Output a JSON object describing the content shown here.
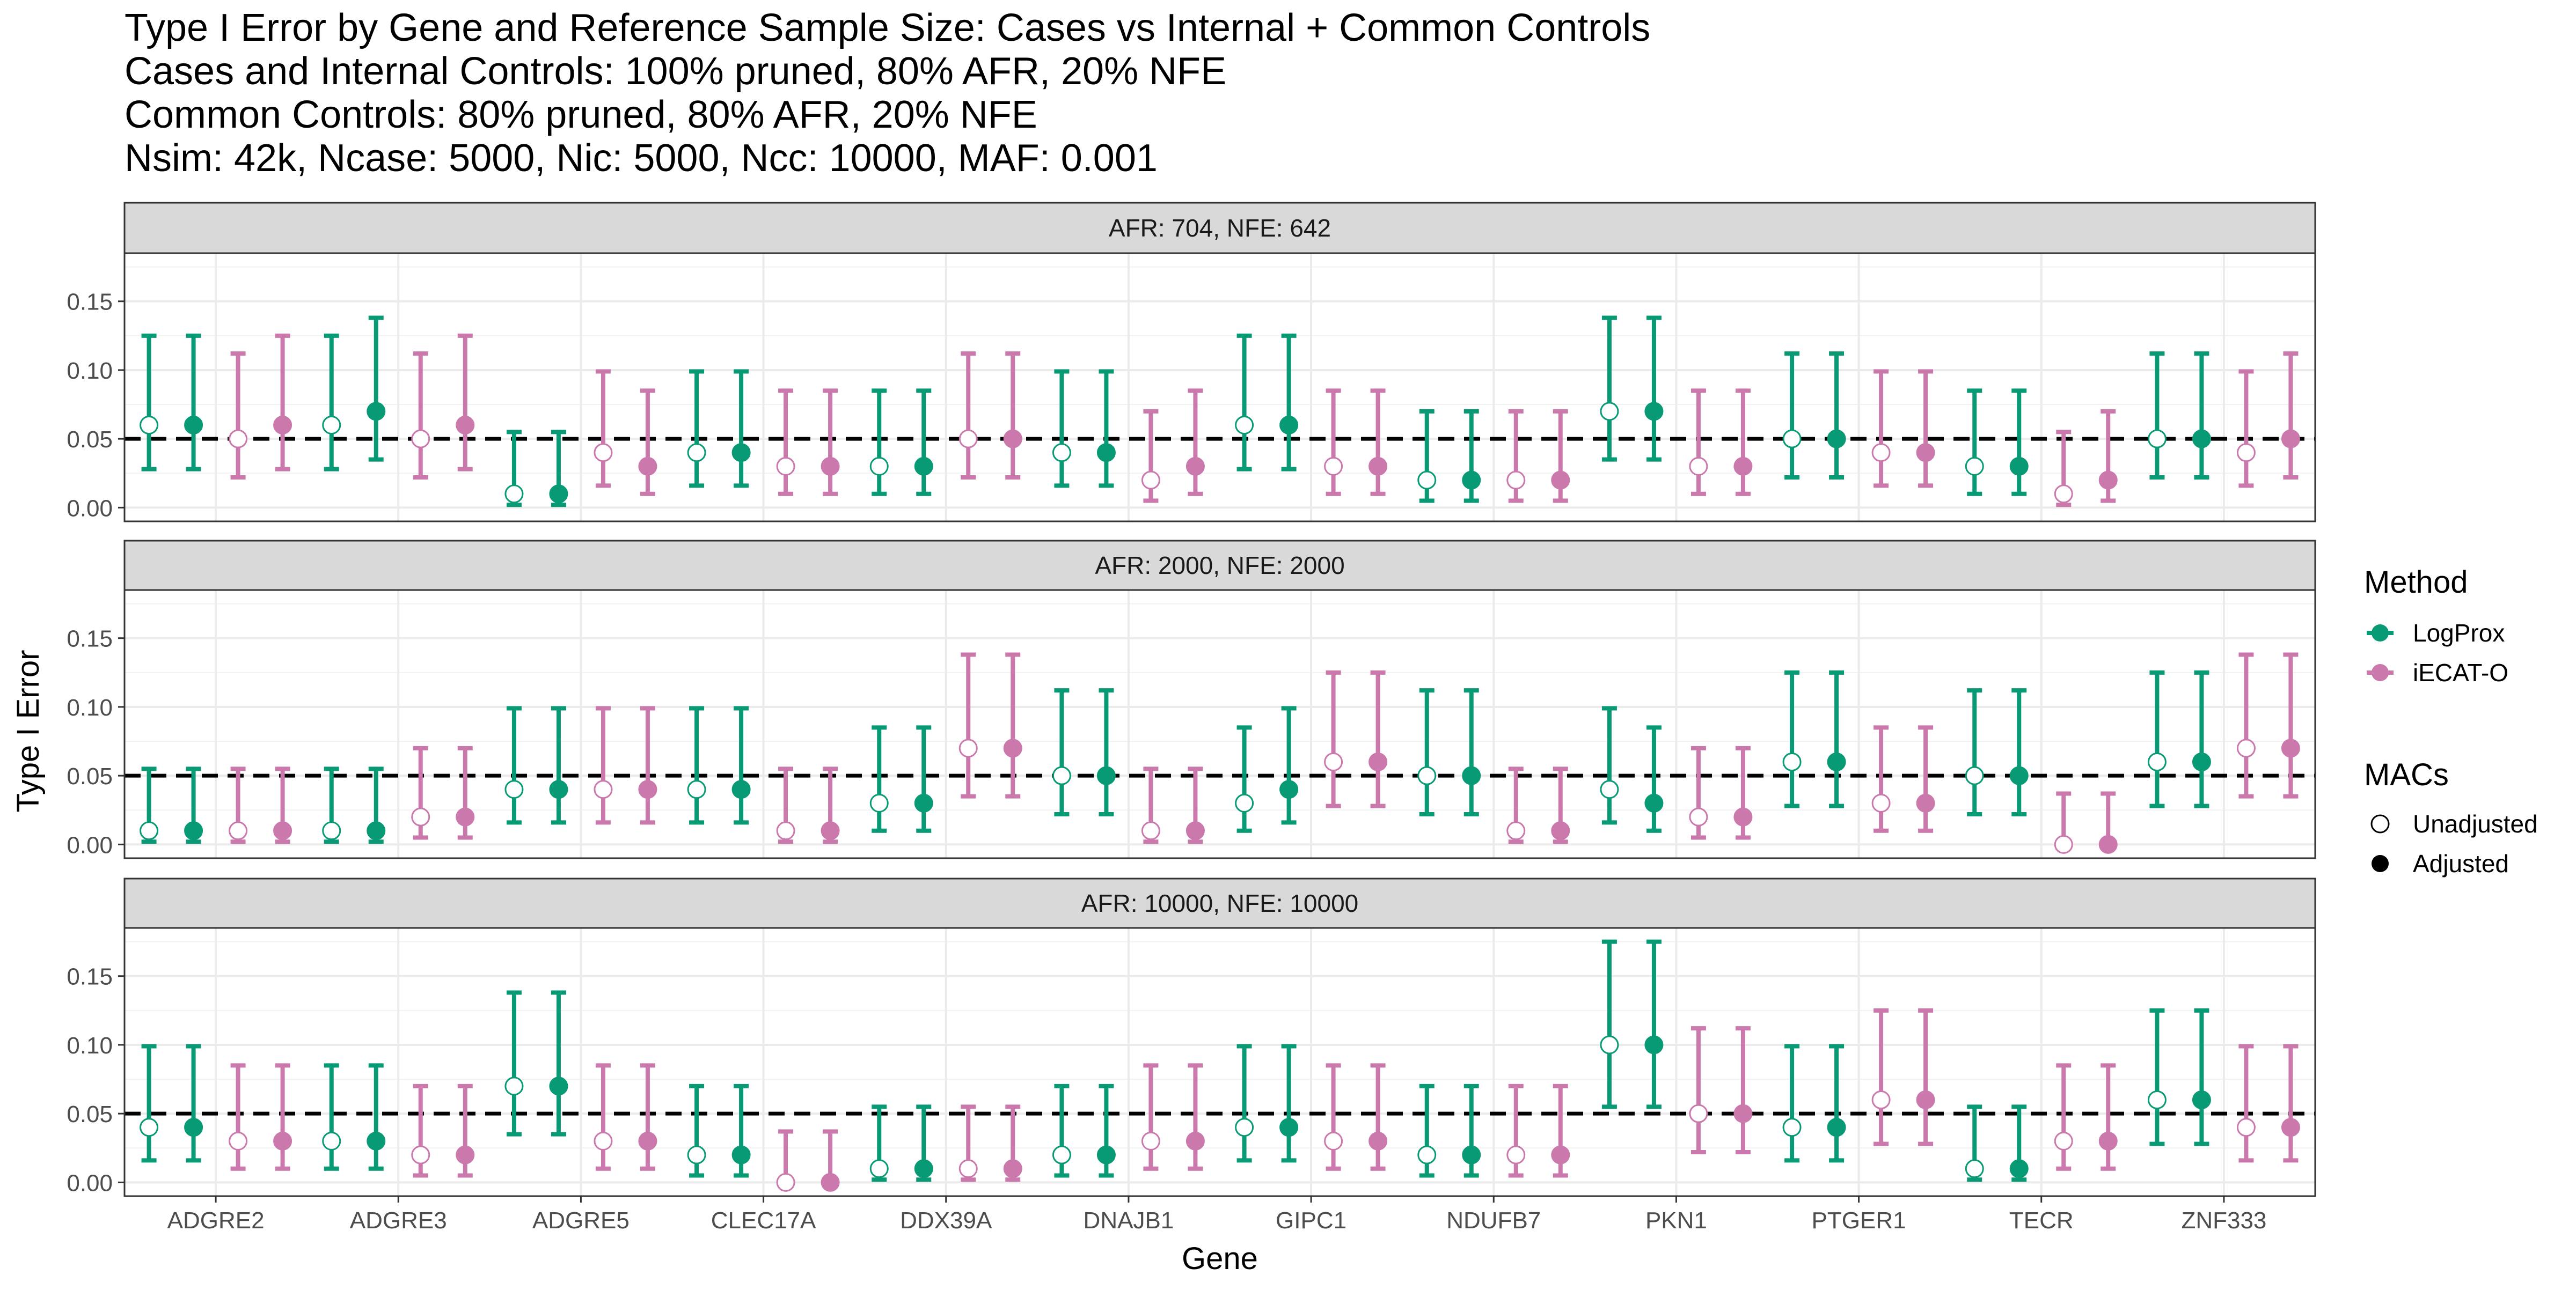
{
  "title_lines": [
    "Type I Error by Gene and Reference Sample Size: Cases vs Internal + Common Controls",
    "Cases and Internal Controls: 100% pruned, 80% AFR, 20% NFE",
    "Common Controls: 80% pruned, 80% AFR, 20% NFE",
    "Nsim: 42k, Ncase: 5000, Nic: 5000, Ncc: 10000, MAF: 0.001"
  ],
  "chart_data": {
    "type": "scatter",
    "xlabel": "Gene",
    "ylabel": "Type I Error",
    "ylim": [
      -0.01,
      0.185
    ],
    "y_ticks": [
      0.0,
      0.05,
      0.1,
      0.15
    ],
    "y_tick_labels": [
      "0.00",
      "0.05",
      "0.10",
      "0.15"
    ],
    "reference_line": 0.05,
    "grid": true,
    "categories": [
      "ADGRE2",
      "ADGRE3",
      "ADGRE5",
      "CLEC17A",
      "DDX39A",
      "DNAJB1",
      "GIPC1",
      "NDUFB7",
      "PKN1",
      "PTGER1",
      "TECR",
      "ZNF333"
    ],
    "legend": {
      "position": "right",
      "method_title": "Method",
      "methods": [
        {
          "name": "LogProx",
          "color": "#079A74"
        },
        {
          "name": "iECAT-O",
          "color": "#CB78AC"
        }
      ],
      "macs_title": "MACs",
      "macs": [
        {
          "name": "Unadjusted",
          "filled": false
        },
        {
          "name": "Adjusted",
          "filled": true
        }
      ]
    },
    "series_order": [
      "LogProx-Unadjusted",
      "LogProx-Adjusted",
      "iECAT-O-Unadjusted",
      "iECAT-O-Adjusted"
    ],
    "panels": [
      {
        "strip": "AFR: 704, NFE: 642",
        "series": {
          "LogProx-Unadjusted": [
            [
              0.06,
              0.028,
              0.125
            ],
            [
              0.06,
              0.028,
              0.125
            ],
            [
              0.01,
              0.002,
              0.055
            ],
            [
              0.04,
              0.016,
              0.099
            ],
            [
              0.03,
              0.01,
              0.085
            ],
            [
              0.04,
              0.016,
              0.099
            ],
            [
              0.06,
              0.028,
              0.125
            ],
            [
              0.02,
              0.005,
              0.07
            ],
            [
              0.07,
              0.035,
              0.138
            ],
            [
              0.05,
              0.022,
              0.112
            ],
            [
              0.03,
              0.01,
              0.085
            ],
            [
              0.05,
              0.022,
              0.112
            ]
          ],
          "LogProx-Adjusted": [
            [
              0.06,
              0.028,
              0.125
            ],
            [
              0.07,
              0.035,
              0.138
            ],
            [
              0.01,
              0.002,
              0.055
            ],
            [
              0.04,
              0.016,
              0.099
            ],
            [
              0.03,
              0.01,
              0.085
            ],
            [
              0.04,
              0.016,
              0.099
            ],
            [
              0.06,
              0.028,
              0.125
            ],
            [
              0.02,
              0.005,
              0.07
            ],
            [
              0.07,
              0.035,
              0.138
            ],
            [
              0.05,
              0.022,
              0.112
            ],
            [
              0.03,
              0.01,
              0.085
            ],
            [
              0.05,
              0.022,
              0.112
            ]
          ],
          "iECAT-O-Unadjusted": [
            [
              0.05,
              0.022,
              0.112
            ],
            [
              0.05,
              0.022,
              0.112
            ],
            [
              0.04,
              0.016,
              0.099
            ],
            [
              0.03,
              0.01,
              0.085
            ],
            [
              0.05,
              0.022,
              0.112
            ],
            [
              0.02,
              0.005,
              0.07
            ],
            [
              0.03,
              0.01,
              0.085
            ],
            [
              0.02,
              0.005,
              0.07
            ],
            [
              0.03,
              0.01,
              0.085
            ],
            [
              0.04,
              0.016,
              0.099
            ],
            [
              0.01,
              0.002,
              0.055
            ],
            [
              0.04,
              0.016,
              0.099
            ]
          ],
          "iECAT-O-Adjusted": [
            [
              0.06,
              0.028,
              0.125
            ],
            [
              0.06,
              0.028,
              0.125
            ],
            [
              0.03,
              0.01,
              0.085
            ],
            [
              0.03,
              0.01,
              0.085
            ],
            [
              0.05,
              0.022,
              0.112
            ],
            [
              0.03,
              0.01,
              0.085
            ],
            [
              0.03,
              0.01,
              0.085
            ],
            [
              0.02,
              0.005,
              0.07
            ],
            [
              0.03,
              0.01,
              0.085
            ],
            [
              0.04,
              0.016,
              0.099
            ],
            [
              0.02,
              0.005,
              0.07
            ],
            [
              0.05,
              0.022,
              0.112
            ]
          ]
        }
      },
      {
        "strip": "AFR: 2000, NFE: 2000",
        "series": {
          "LogProx-Unadjusted": [
            [
              0.01,
              0.002,
              0.055
            ],
            [
              0.01,
              0.002,
              0.055
            ],
            [
              0.04,
              0.016,
              0.099
            ],
            [
              0.04,
              0.016,
              0.099
            ],
            [
              0.03,
              0.01,
              0.085
            ],
            [
              0.05,
              0.022,
              0.112
            ],
            [
              0.03,
              0.01,
              0.085
            ],
            [
              0.05,
              0.022,
              0.112
            ],
            [
              0.04,
              0.016,
              0.099
            ],
            [
              0.06,
              0.028,
              0.125
            ],
            [
              0.05,
              0.022,
              0.112
            ],
            [
              0.06,
              0.028,
              0.125
            ]
          ],
          "LogProx-Adjusted": [
            [
              0.01,
              0.002,
              0.055
            ],
            [
              0.01,
              0.002,
              0.055
            ],
            [
              0.04,
              0.016,
              0.099
            ],
            [
              0.04,
              0.016,
              0.099
            ],
            [
              0.03,
              0.01,
              0.085
            ],
            [
              0.05,
              0.022,
              0.112
            ],
            [
              0.04,
              0.016,
              0.099
            ],
            [
              0.05,
              0.022,
              0.112
            ],
            [
              0.03,
              0.01,
              0.085
            ],
            [
              0.06,
              0.028,
              0.125
            ],
            [
              0.05,
              0.022,
              0.112
            ],
            [
              0.06,
              0.028,
              0.125
            ]
          ],
          "iECAT-O-Unadjusted": [
            [
              0.01,
              0.002,
              0.055
            ],
            [
              0.02,
              0.005,
              0.07
            ],
            [
              0.04,
              0.016,
              0.099
            ],
            [
              0.01,
              0.002,
              0.055
            ],
            [
              0.07,
              0.035,
              0.138
            ],
            [
              0.01,
              0.002,
              0.055
            ],
            [
              0.06,
              0.028,
              0.125
            ],
            [
              0.01,
              0.002,
              0.055
            ],
            [
              0.02,
              0.005,
              0.07
            ],
            [
              0.03,
              0.01,
              0.085
            ],
            [
              0.0,
              0.0,
              0.037
            ],
            [
              0.07,
              0.035,
              0.138
            ]
          ],
          "iECAT-O-Adjusted": [
            [
              0.01,
              0.002,
              0.055
            ],
            [
              0.02,
              0.005,
              0.07
            ],
            [
              0.04,
              0.016,
              0.099
            ],
            [
              0.01,
              0.002,
              0.055
            ],
            [
              0.07,
              0.035,
              0.138
            ],
            [
              0.01,
              0.002,
              0.055
            ],
            [
              0.06,
              0.028,
              0.125
            ],
            [
              0.01,
              0.002,
              0.055
            ],
            [
              0.02,
              0.005,
              0.07
            ],
            [
              0.03,
              0.01,
              0.085
            ],
            [
              0.0,
              0.0,
              0.037
            ],
            [
              0.07,
              0.035,
              0.138
            ]
          ]
        }
      },
      {
        "strip": "AFR: 10000, NFE: 10000",
        "series": {
          "LogProx-Unadjusted": [
            [
              0.04,
              0.016,
              0.099
            ],
            [
              0.03,
              0.01,
              0.085
            ],
            [
              0.07,
              0.035,
              0.138
            ],
            [
              0.02,
              0.005,
              0.07
            ],
            [
              0.01,
              0.002,
              0.055
            ],
            [
              0.02,
              0.005,
              0.07
            ],
            [
              0.04,
              0.016,
              0.099
            ],
            [
              0.02,
              0.005,
              0.07
            ],
            [
              0.1,
              0.055,
              0.175
            ],
            [
              0.04,
              0.016,
              0.099
            ],
            [
              0.01,
              0.002,
              0.055
            ],
            [
              0.06,
              0.028,
              0.125
            ]
          ],
          "LogProx-Adjusted": [
            [
              0.04,
              0.016,
              0.099
            ],
            [
              0.03,
              0.01,
              0.085
            ],
            [
              0.07,
              0.035,
              0.138
            ],
            [
              0.02,
              0.005,
              0.07
            ],
            [
              0.01,
              0.002,
              0.055
            ],
            [
              0.02,
              0.005,
              0.07
            ],
            [
              0.04,
              0.016,
              0.099
            ],
            [
              0.02,
              0.005,
              0.07
            ],
            [
              0.1,
              0.055,
              0.175
            ],
            [
              0.04,
              0.016,
              0.099
            ],
            [
              0.01,
              0.002,
              0.055
            ],
            [
              0.06,
              0.028,
              0.125
            ]
          ],
          "iECAT-O-Unadjusted": [
            [
              0.03,
              0.01,
              0.085
            ],
            [
              0.02,
              0.005,
              0.07
            ],
            [
              0.03,
              0.01,
              0.085
            ],
            [
              0.0,
              0.0,
              0.037
            ],
            [
              0.01,
              0.002,
              0.055
            ],
            [
              0.03,
              0.01,
              0.085
            ],
            [
              0.03,
              0.01,
              0.085
            ],
            [
              0.02,
              0.005,
              0.07
            ],
            [
              0.05,
              0.022,
              0.112
            ],
            [
              0.06,
              0.028,
              0.125
            ],
            [
              0.03,
              0.01,
              0.085
            ],
            [
              0.04,
              0.016,
              0.099
            ]
          ],
          "iECAT-O-Adjusted": [
            [
              0.03,
              0.01,
              0.085
            ],
            [
              0.02,
              0.005,
              0.07
            ],
            [
              0.03,
              0.01,
              0.085
            ],
            [
              0.0,
              0.0,
              0.037
            ],
            [
              0.01,
              0.002,
              0.055
            ],
            [
              0.03,
              0.01,
              0.085
            ],
            [
              0.03,
              0.01,
              0.085
            ],
            [
              0.02,
              0.005,
              0.07
            ],
            [
              0.05,
              0.022,
              0.112
            ],
            [
              0.06,
              0.028,
              0.125
            ],
            [
              0.03,
              0.01,
              0.085
            ],
            [
              0.04,
              0.016,
              0.099
            ]
          ]
        }
      }
    ]
  }
}
